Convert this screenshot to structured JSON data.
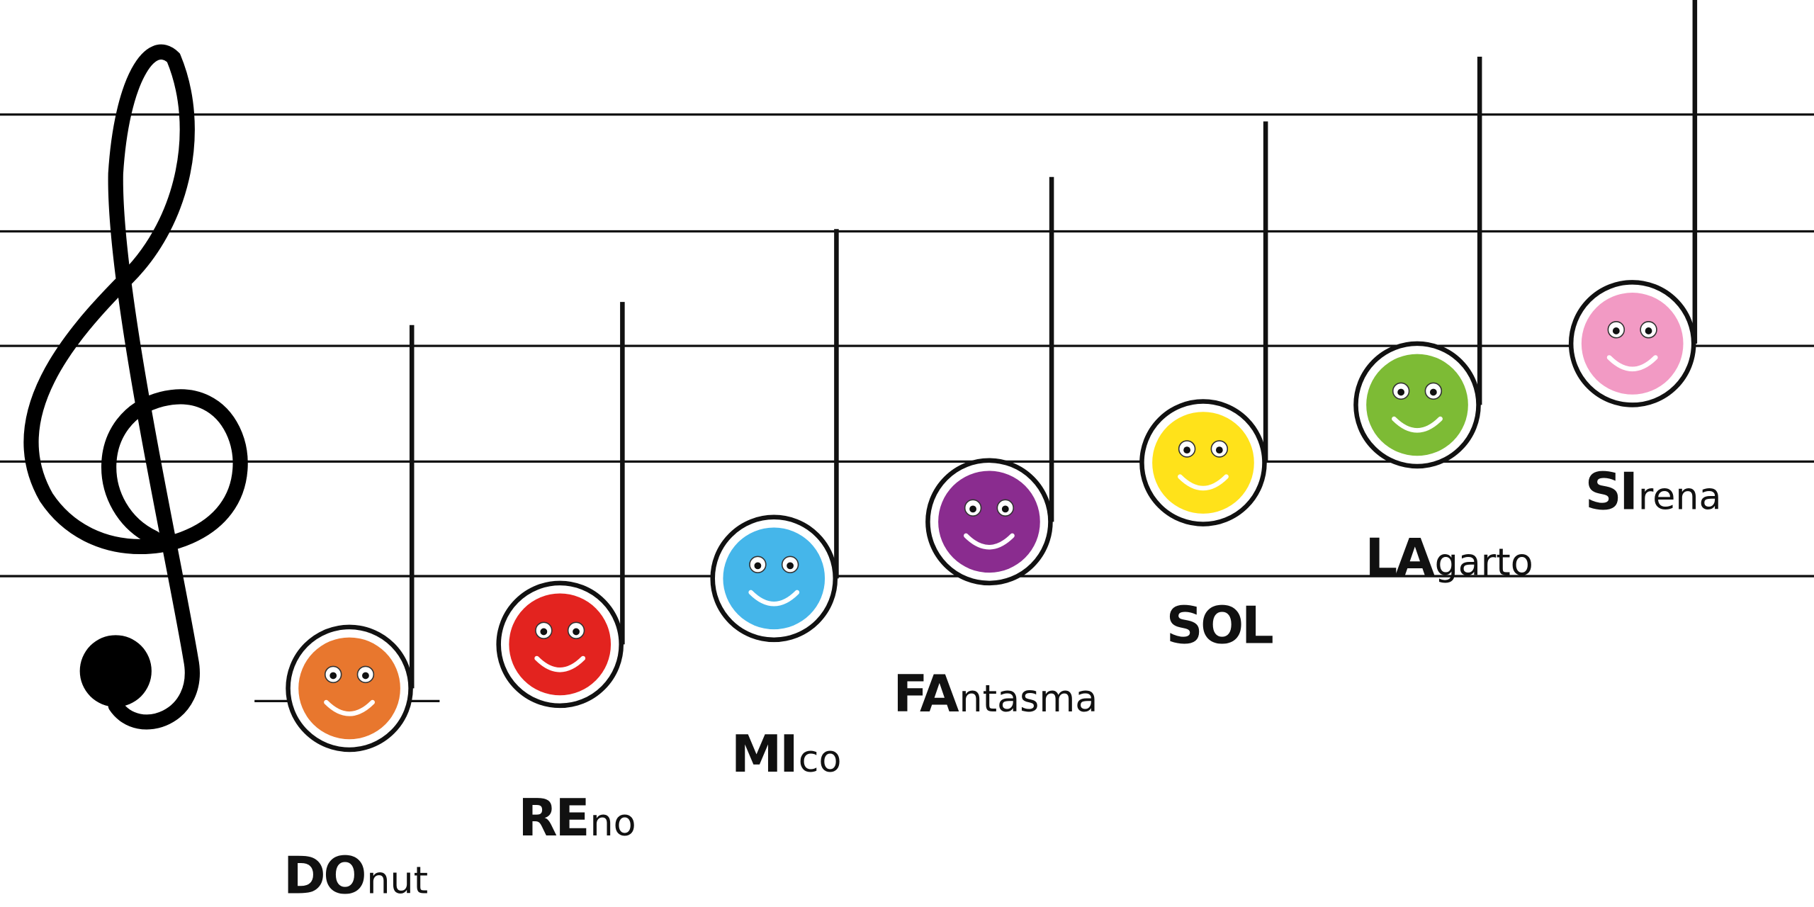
{
  "notes": [
    {
      "syllable": "DO",
      "rest": "nut"
    },
    {
      "syllable": "RE",
      "rest": "no"
    },
    {
      "syllable": "MI",
      "rest": "co"
    },
    {
      "syllable": "FA",
      "rest": "ntasma"
    },
    {
      "syllable": "SOL"
    },
    {
      "syllable": "LA",
      "rest": "garto"
    },
    {
      "syllable": "SI",
      "rest": "rena"
    }
  ]
}
